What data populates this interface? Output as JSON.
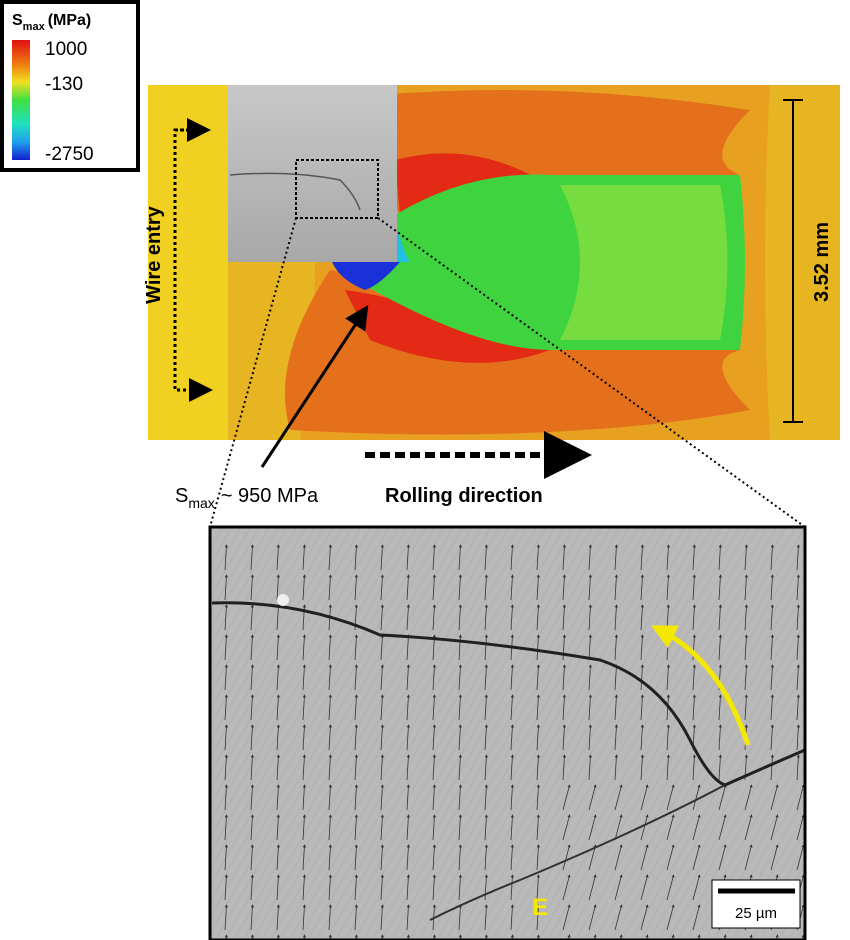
{
  "legend": {
    "symbol": "S",
    "subscript": "max",
    "unit": "(MPa)",
    "labels": [
      "1000",
      "-130",
      "-2750"
    ]
  },
  "labels": {
    "wire_entry": "Wire entry",
    "width": "3.52 mm",
    "peak_symbol": "S",
    "peak_subscript": "max",
    "peak_value": "~ 950 MPa",
    "rolling_direction": "Rolling direction",
    "region": "E",
    "scale_bar": "25 µm"
  }
}
